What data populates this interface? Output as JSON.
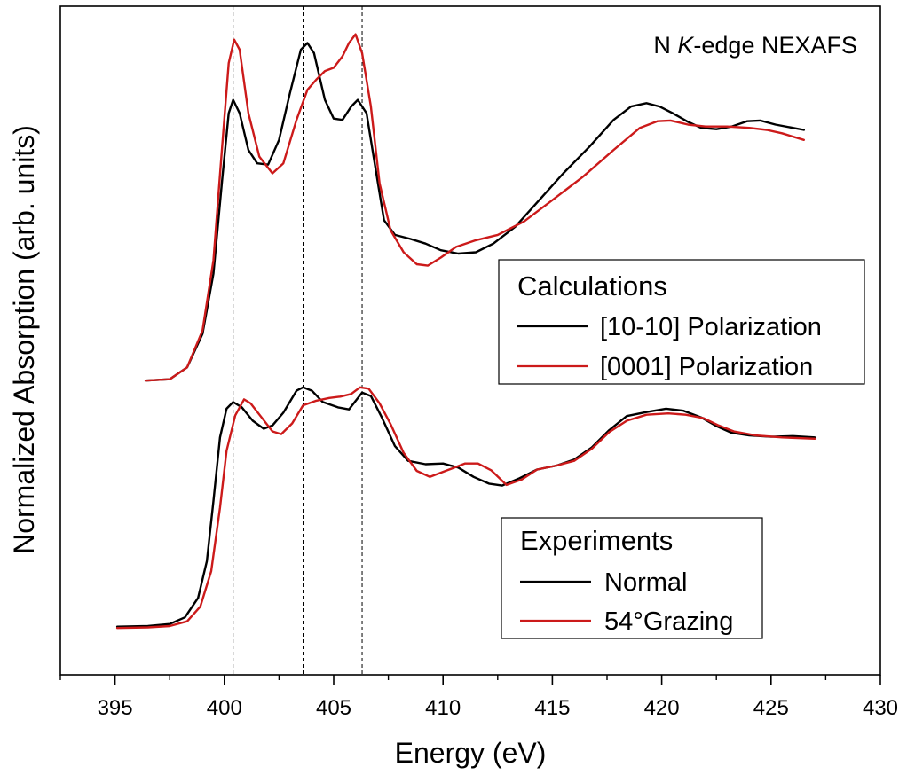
{
  "chart_data": {
    "type": "line",
    "title": "",
    "annotation": {
      "prefix": "N ",
      "italic": "K",
      "suffix": "-edge NEXAFS"
    },
    "xlabel": "Energy (eV)",
    "ylabel": "Normalized Absorption (arb. units)",
    "xlim": [
      392.5,
      430
    ],
    "ylim": [
      0,
      100
    ],
    "xticks": [
      395,
      400,
      405,
      410,
      415,
      420,
      425,
      430
    ],
    "xtick_labels": [
      "395",
      "400",
      "405",
      "410",
      "415",
      "420",
      "425",
      "430"
    ],
    "y_ticks_shown": false,
    "reference_lines": [
      400.4,
      403.6,
      406.3
    ],
    "colors": {
      "black": "#000000",
      "red": "#cc1a1a"
    },
    "groups": [
      {
        "name": "Calculations",
        "legend_title": "Calculations",
        "series": [
          {
            "name": "[10-10] Polarization",
            "color": "#000000",
            "points": [
              [
                396.4,
                44.0
              ],
              [
                397.5,
                44.2
              ],
              [
                398.3,
                46.0
              ],
              [
                399.0,
                51.0
              ],
              [
                399.5,
                60.0
              ],
              [
                399.9,
                74.0
              ],
              [
                400.2,
                84.0
              ],
              [
                400.4,
                86.0
              ],
              [
                400.7,
                84.0
              ],
              [
                401.1,
                78.5
              ],
              [
                401.5,
                76.5
              ],
              [
                402.0,
                76.3
              ],
              [
                402.5,
                80.0
              ],
              [
                403.0,
                87.0
              ],
              [
                403.5,
                93.5
              ],
              [
                403.8,
                94.5
              ],
              [
                404.1,
                93.0
              ],
              [
                404.6,
                86.0
              ],
              [
                405.0,
                83.2
              ],
              [
                405.4,
                83.0
              ],
              [
                405.8,
                85.0
              ],
              [
                406.1,
                86.0
              ],
              [
                406.5,
                84.0
              ],
              [
                406.9,
                76.0
              ],
              [
                407.3,
                68.0
              ],
              [
                407.8,
                65.8
              ],
              [
                408.5,
                65.2
              ],
              [
                409.2,
                64.5
              ],
              [
                409.9,
                63.5
              ],
              [
                410.7,
                63.0
              ],
              [
                411.5,
                63.2
              ],
              [
                412.3,
                64.5
              ],
              [
                413.3,
                67.0
              ],
              [
                414.4,
                71.0
              ],
              [
                415.5,
                75.0
              ],
              [
                416.7,
                79.0
              ],
              [
                417.8,
                83.0
              ],
              [
                418.6,
                85.0
              ],
              [
                419.3,
                85.5
              ],
              [
                419.9,
                85.0
              ],
              [
                420.5,
                84.0
              ],
              [
                421.2,
                82.7
              ],
              [
                421.8,
                81.8
              ],
              [
                422.5,
                81.6
              ],
              [
                423.2,
                82.0
              ],
              [
                423.9,
                82.8
              ],
              [
                424.5,
                82.9
              ],
              [
                425.2,
                82.3
              ],
              [
                426.0,
                81.8
              ],
              [
                426.5,
                81.5
              ]
            ]
          },
          {
            "name": "[0001] Polarization",
            "color": "#cc1a1a",
            "points": [
              [
                396.4,
                44.0
              ],
              [
                397.5,
                44.2
              ],
              [
                398.3,
                46.0
              ],
              [
                399.0,
                51.5
              ],
              [
                399.5,
                62.0
              ],
              [
                399.9,
                79.0
              ],
              [
                400.2,
                91.5
              ],
              [
                400.45,
                95.0
              ],
              [
                400.7,
                93.5
              ],
              [
                401.1,
                84.0
              ],
              [
                401.6,
                77.5
              ],
              [
                402.2,
                75.0
              ],
              [
                402.7,
                76.5
              ],
              [
                403.3,
                83.0
              ],
              [
                403.8,
                87.5
              ],
              [
                404.2,
                89.0
              ],
              [
                404.6,
                90.3
              ],
              [
                405.0,
                90.8
              ],
              [
                405.4,
                92.5
              ],
              [
                405.7,
                94.5
              ],
              [
                406.0,
                95.8
              ],
              [
                406.3,
                93.0
              ],
              [
                406.7,
                85.0
              ],
              [
                407.1,
                73.5
              ],
              [
                407.6,
                66.5
              ],
              [
                408.2,
                63.2
              ],
              [
                408.8,
                61.4
              ],
              [
                409.3,
                61.2
              ],
              [
                409.9,
                62.4
              ],
              [
                410.6,
                64.0
              ],
              [
                411.5,
                65.0
              ],
              [
                412.5,
                65.8
              ],
              [
                413.7,
                67.8
              ],
              [
                415.0,
                71.0
              ],
              [
                416.4,
                74.5
              ],
              [
                417.8,
                78.5
              ],
              [
                419.0,
                81.8
              ],
              [
                419.8,
                82.8
              ],
              [
                420.4,
                82.9
              ],
              [
                421.2,
                82.3
              ],
              [
                422.0,
                82.0
              ],
              [
                423.0,
                82.0
              ],
              [
                424.0,
                81.8
              ],
              [
                424.8,
                81.5
              ],
              [
                425.5,
                81.0
              ],
              [
                426.5,
                80.0
              ]
            ]
          }
        ]
      },
      {
        "name": "Experiments",
        "legend_title": "Experiments",
        "series": [
          {
            "name": "Normal",
            "color": "#000000",
            "points": [
              [
                395.1,
                7.2
              ],
              [
                396.5,
                7.3
              ],
              [
                397.5,
                7.6
              ],
              [
                398.2,
                8.6
              ],
              [
                398.8,
                11.5
              ],
              [
                399.2,
                17.0
              ],
              [
                399.5,
                26.0
              ],
              [
                399.8,
                35.5
              ],
              [
                400.1,
                39.8
              ],
              [
                400.4,
                40.8
              ],
              [
                400.8,
                40.0
              ],
              [
                401.3,
                38.0
              ],
              [
                401.8,
                36.8
              ],
              [
                402.2,
                37.3
              ],
              [
                402.7,
                39.2
              ],
              [
                403.3,
                42.5
              ],
              [
                403.6,
                43.0
              ],
              [
                404.0,
                42.5
              ],
              [
                404.5,
                40.8
              ],
              [
                405.2,
                40.0
              ],
              [
                405.7,
                39.7
              ],
              [
                406.3,
                42.2
              ],
              [
                406.7,
                41.7
              ],
              [
                407.2,
                38.5
              ],
              [
                407.8,
                34.2
              ],
              [
                408.4,
                32.0
              ],
              [
                409.2,
                31.5
              ],
              [
                410.0,
                31.6
              ],
              [
                410.7,
                31.0
              ],
              [
                411.4,
                29.6
              ],
              [
                412.1,
                28.6
              ],
              [
                412.7,
                28.3
              ],
              [
                413.5,
                29.4
              ],
              [
                414.3,
                30.7
              ],
              [
                415.2,
                31.3
              ],
              [
                416.0,
                32.2
              ],
              [
                416.8,
                34.0
              ],
              [
                417.6,
                36.6
              ],
              [
                418.4,
                38.7
              ],
              [
                419.3,
                39.3
              ],
              [
                420.2,
                39.8
              ],
              [
                421.0,
                39.5
              ],
              [
                421.8,
                38.5
              ],
              [
                422.5,
                37.2
              ],
              [
                423.2,
                36.2
              ],
              [
                424.0,
                35.8
              ],
              [
                425.0,
                35.6
              ],
              [
                426.0,
                35.7
              ],
              [
                427.0,
                35.5
              ]
            ]
          },
          {
            "name": "54°Grazing",
            "color": "#cc1a1a",
            "points": [
              [
                395.1,
                7.0
              ],
              [
                396.5,
                7.1
              ],
              [
                397.5,
                7.3
              ],
              [
                398.3,
                8.0
              ],
              [
                398.9,
                10.2
              ],
              [
                399.4,
                15.5
              ],
              [
                399.8,
                25.0
              ],
              [
                400.1,
                33.5
              ],
              [
                400.5,
                38.8
              ],
              [
                400.9,
                41.2
              ],
              [
                401.2,
                40.6
              ],
              [
                401.7,
                38.5
              ],
              [
                402.2,
                36.4
              ],
              [
                402.6,
                36.0
              ],
              [
                403.1,
                37.6
              ],
              [
                403.6,
                40.3
              ],
              [
                404.2,
                41.0
              ],
              [
                404.8,
                41.4
              ],
              [
                405.3,
                41.6
              ],
              [
                405.8,
                42.0
              ],
              [
                406.2,
                43.0
              ],
              [
                406.6,
                42.8
              ],
              [
                407.1,
                40.6
              ],
              [
                407.6,
                37.5
              ],
              [
                408.2,
                33.2
              ],
              [
                408.8,
                30.5
              ],
              [
                409.4,
                29.6
              ],
              [
                410.2,
                30.6
              ],
              [
                411.0,
                31.6
              ],
              [
                411.6,
                31.6
              ],
              [
                412.2,
                30.6
              ],
              [
                412.9,
                28.4
              ],
              [
                413.6,
                29.2
              ],
              [
                414.3,
                30.7
              ],
              [
                415.2,
                31.3
              ],
              [
                416.0,
                32.0
              ],
              [
                416.8,
                33.8
              ],
              [
                417.6,
                36.3
              ],
              [
                418.4,
                38.0
              ],
              [
                419.3,
                38.9
              ],
              [
                420.3,
                39.1
              ],
              [
                421.1,
                38.9
              ],
              [
                421.9,
                38.4
              ],
              [
                422.6,
                37.3
              ],
              [
                423.3,
                36.4
              ],
              [
                424.3,
                35.8
              ],
              [
                425.5,
                35.5
              ],
              [
                427.0,
                35.3
              ]
            ]
          }
        ]
      }
    ],
    "legends": [
      {
        "title": "Calculations",
        "entries": [
          {
            "label": "[10-10] Polarization",
            "color": "#000000"
          },
          {
            "label": "[0001] Polarization",
            "color": "#cc1a1a"
          }
        ]
      },
      {
        "title": "Experiments",
        "entries": [
          {
            "label": "Normal",
            "color": "#000000"
          },
          {
            "label": "54°Grazing",
            "color": "#cc1a1a"
          }
        ]
      }
    ]
  }
}
